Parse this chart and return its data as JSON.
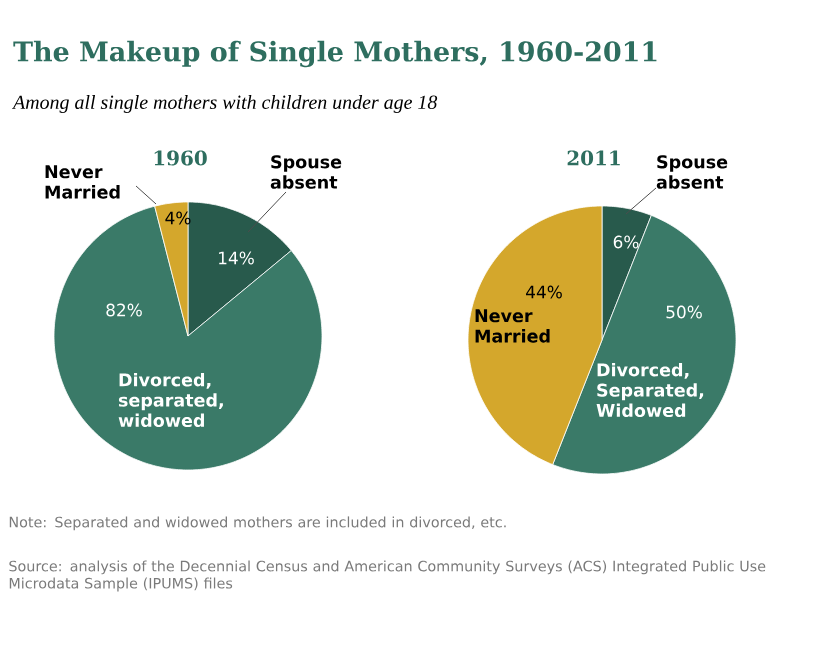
{
  "chart_data": [
    {
      "type": "other",
      "title": "The Makeup of Single Mothers, 1960-2011",
      "subtitle": "Among all single mothers with children under age 18",
      "annotations": [
        "Note: Separated and widowed mothers are included in divorced, etc.",
        "Source: analysis of the Decennial Census and American Community Surveys (ACS) Integrated Public Use Microdata Sample (IPUMS) files"
      ]
    },
    {
      "type": "pie",
      "title": "1960",
      "categories": [
        "Spouse absent",
        "Divorced, separated, widowed",
        "Never Married"
      ],
      "values": [
        14,
        82,
        4
      ],
      "colors": [
        "#285a4c",
        "#3a7a68",
        "#d4a72c"
      ],
      "value_labels": [
        "14%",
        "82%",
        "4%"
      ]
    },
    {
      "type": "pie",
      "title": "2011",
      "categories": [
        "Spouse absent",
        "Divorced, Separated, Widowed",
        "Never Married"
      ],
      "values": [
        6,
        50,
        44
      ],
      "colors": [
        "#285a4c",
        "#3a7a68",
        "#d4a72c"
      ],
      "value_labels": [
        "6%",
        "50%",
        "44%"
      ]
    }
  ]
}
